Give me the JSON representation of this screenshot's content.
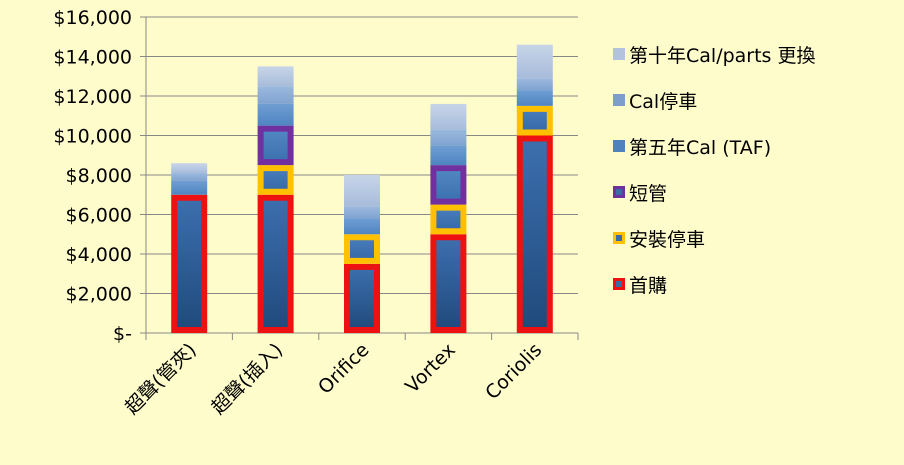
{
  "chart_data": {
    "type": "bar",
    "stacked": true,
    "categories": [
      "超聲(管夾)",
      "超聲(插入)",
      "Orifice",
      "Vortex",
      "Coriolis"
    ],
    "ylim": [
      0,
      16000
    ],
    "ytick_values": [
      0,
      2000,
      4000,
      6000,
      8000,
      10000,
      12000,
      14000,
      16000
    ],
    "ytick_labels": [
      "$-",
      "$2,000",
      "$4,000",
      "$6,000",
      "$8,000",
      "$10,000",
      "$12,000",
      "$14,000",
      "$16,000"
    ],
    "grid": true,
    "legend_position": "right",
    "series": [
      {
        "name": "首購",
        "values": [
          7000,
          7000,
          3500,
          5000,
          10000
        ]
      },
      {
        "name": "安裝停車",
        "values": [
          0,
          1500,
          1500,
          1500,
          1500
        ]
      },
      {
        "name": "短管",
        "values": [
          0,
          2000,
          0,
          2000,
          0
        ]
      },
      {
        "name": "第五年Cal (TAF)",
        "values": [
          700,
          1100,
          800,
          1000,
          800
        ]
      },
      {
        "name": "Cal停車",
        "values": [
          400,
          900,
          600,
          800,
          600
        ]
      },
      {
        "name": "第十年Cal/parts 更換",
        "values": [
          500,
          1000,
          1600,
          1300,
          1700
        ]
      }
    ]
  },
  "colors": {
    "background": "#fffccc",
    "bar_fill": "#4f81bd",
    "bar_dark": "#1f4e80",
    "first_purchase_border": "#ee1111",
    "install_border": "#ffc000",
    "spool_border": "#7030a0",
    "grid": "#888888"
  },
  "legend_icons": [
    "red-square-icon",
    "gold-square-icon",
    "purple-square-icon",
    "blue-square-icon",
    "slate-square-icon",
    "lavender-square-icon"
  ]
}
